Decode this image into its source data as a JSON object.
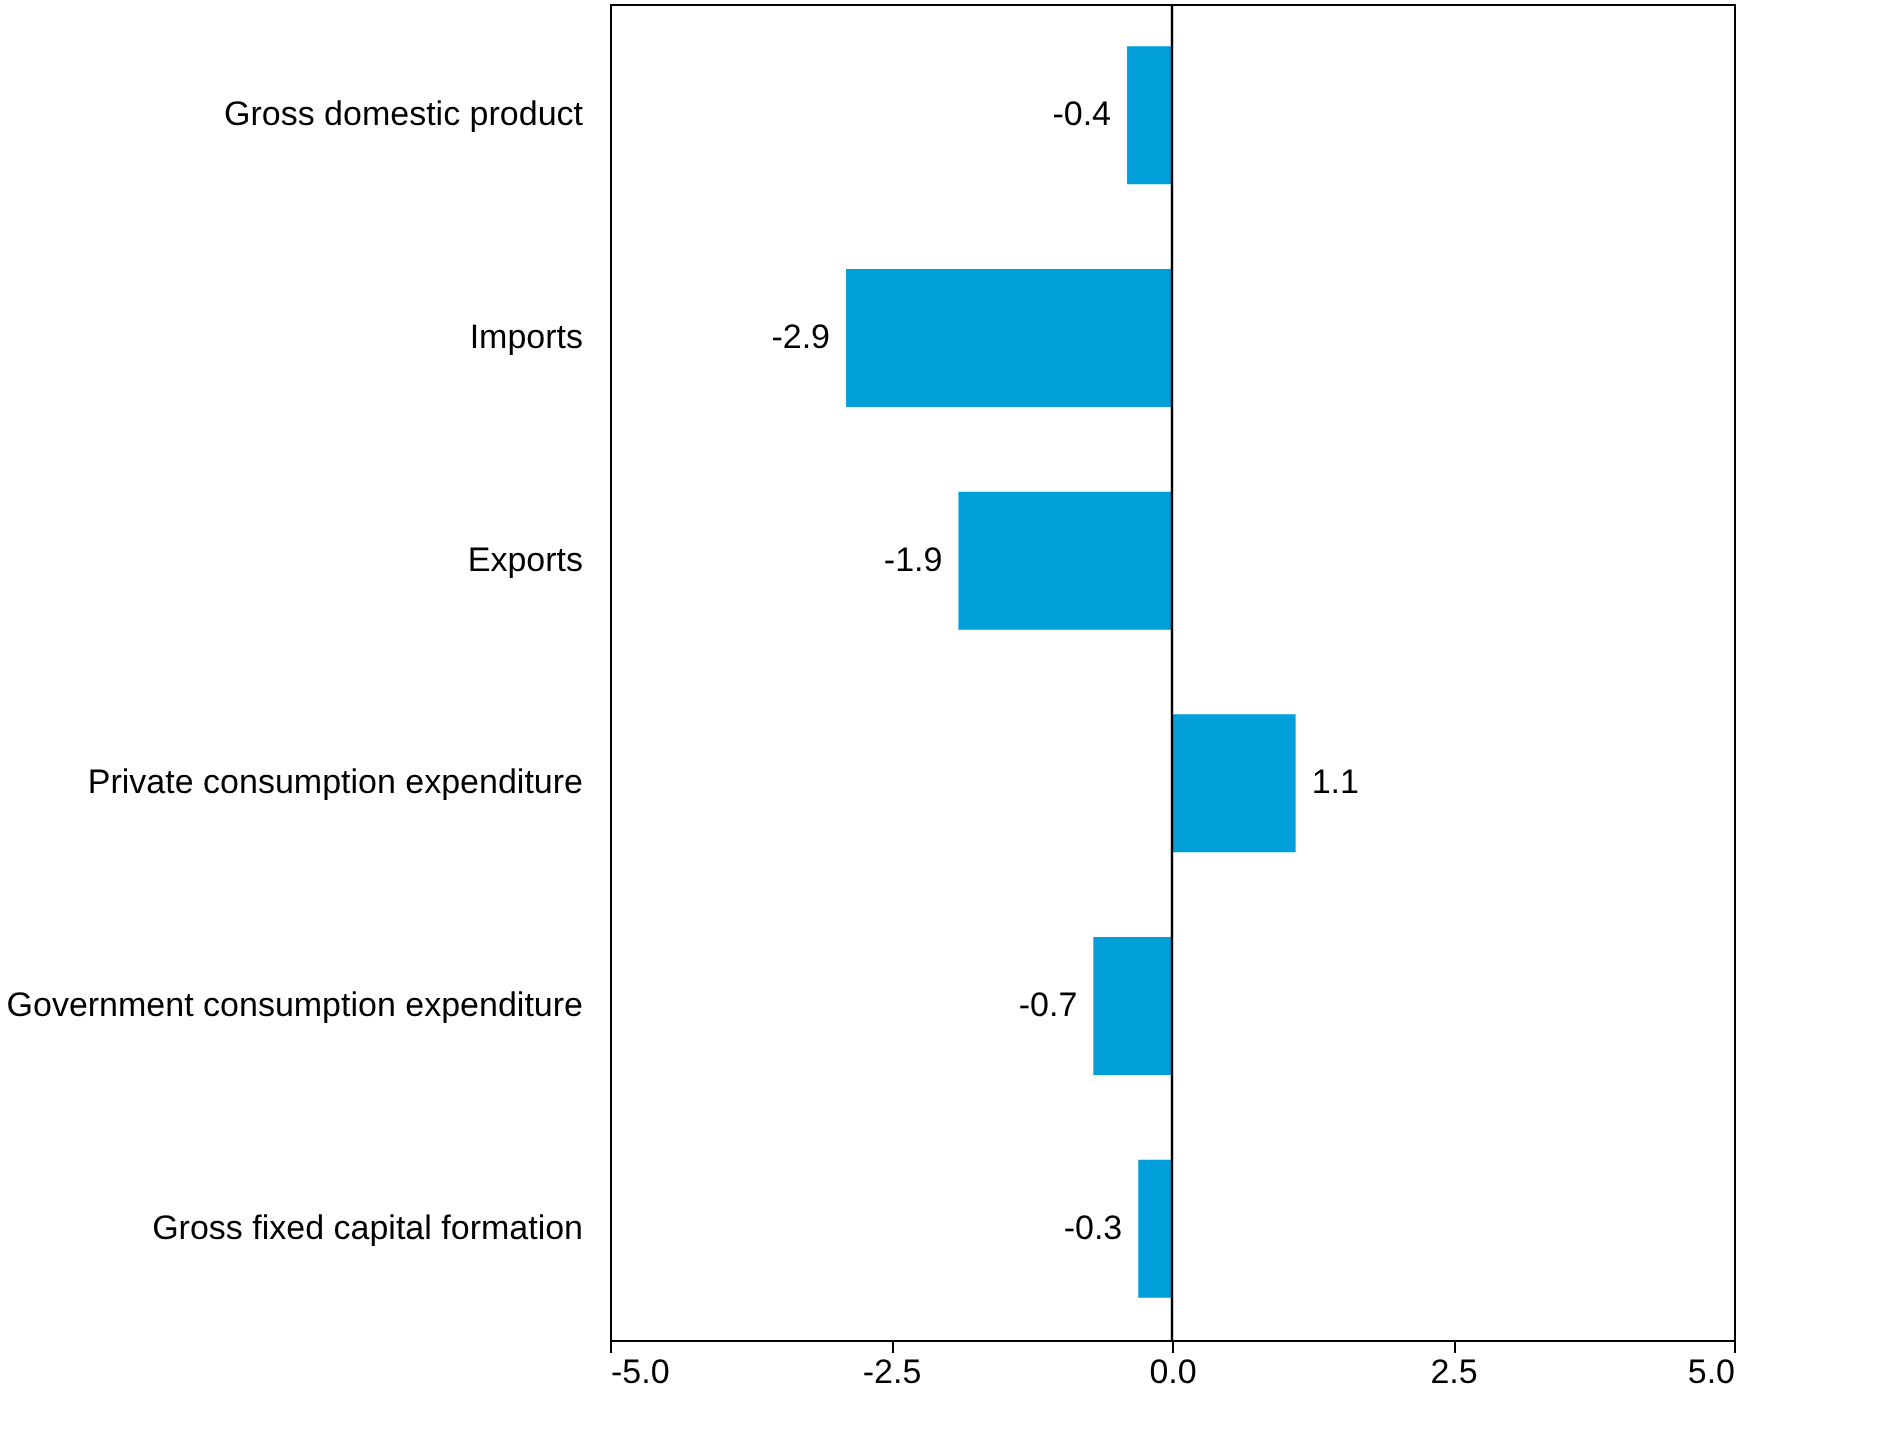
{
  "chart_data": {
    "type": "bar",
    "orientation": "horizontal",
    "categories": [
      "Gross domestic product",
      "Imports",
      "Exports",
      "Private consumption expenditure",
      "Government consumption expenditure",
      "Gross fixed capital formation"
    ],
    "values": [
      -0.4,
      -2.9,
      -1.9,
      1.1,
      -0.7,
      -0.3
    ],
    "color": "#009fda",
    "xlim": [
      -5,
      5
    ],
    "xticks": [
      {
        "value": -5,
        "label": "-5.0"
      },
      {
        "value": -2.5,
        "label": "-2.5"
      },
      {
        "value": 0,
        "label": "0.0"
      },
      {
        "value": 2.5,
        "label": "2.5"
      },
      {
        "value": 5,
        "label": "5.0"
      }
    ],
    "ref_lines": [
      {
        "axis": "x",
        "value": 0,
        "label": null,
        "color": "#000000"
      }
    ],
    "data_labels": true
  }
}
